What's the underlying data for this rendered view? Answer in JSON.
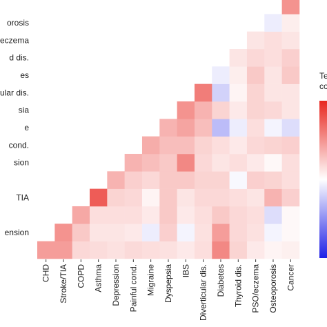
{
  "chart_data": {
    "type": "heatmap",
    "title": "",
    "xlabel": "",
    "ylabel": "",
    "x_categories": [
      "CHD",
      "Stroke/TIA",
      "COPD",
      "Asthma",
      "Depression",
      "Painful cond.",
      "Migraine",
      "Dyspepsia",
      "IBS",
      "Diverticular dis.",
      "Diabetes",
      "Thyroid dis.",
      "PSO/eczema",
      "Osteoporosis",
      "Cancer"
    ],
    "y_categories_visible": [
      "orosis",
      "eczema",
      "d dis.",
      "es",
      "ular dis.",
      "sia",
      "e",
      "cond.",
      "sion",
      "",
      "TIA",
      "",
      "ension"
    ],
    "legend": {
      "title_lines": [
        "Te",
        "co"
      ],
      "palette": {
        "low": "#1f1fe6",
        "mid": "#ffffff",
        "high": "#e8261f"
      },
      "range": [
        -1,
        1
      ],
      "position": "right"
    },
    "cells": [
      [
        0.45,
        0.45,
        0.18,
        0.16,
        0.14,
        0.17,
        0.15,
        0.14,
        0.1,
        0.15,
        0.55,
        0.2,
        0.1,
        0.05,
        0.07
      ],
      [
        null,
        0.5,
        0.25,
        0.12,
        0.12,
        0.1,
        -0.08,
        0.22,
        -0.05,
        0.14,
        0.45,
        0.18,
        0.14,
        -0.05,
        0.03
      ],
      [
        null,
        null,
        0.4,
        0.15,
        0.15,
        0.15,
        0.1,
        0.25,
        0.1,
        0.15,
        0.25,
        0.18,
        0.15,
        -0.15,
        0.03
      ],
      [
        null,
        null,
        null,
        0.75,
        0.2,
        0.18,
        0.05,
        0.25,
        0.12,
        0.18,
        0.18,
        0.15,
        0.12,
        0.35,
        0.22
      ],
      [
        null,
        null,
        null,
        null,
        0.35,
        0.22,
        0.18,
        0.25,
        0.25,
        0.2,
        0.2,
        -0.03,
        0.22,
        0.2,
        0.15
      ],
      [
        null,
        null,
        null,
        null,
        null,
        0.35,
        0.3,
        0.25,
        0.55,
        0.18,
        0.12,
        0.15,
        0.1,
        0.03,
        0.15
      ],
      [
        null,
        null,
        null,
        null,
        null,
        null,
        0.38,
        0.3,
        0.3,
        0.2,
        0.15,
        0.1,
        0.18,
        0.2,
        0.22
      ],
      [
        null,
        null,
        null,
        null,
        null,
        null,
        null,
        0.35,
        0.42,
        0.3,
        -0.3,
        -0.08,
        0.15,
        -0.05,
        -0.15
      ],
      [
        null,
        null,
        null,
        null,
        null,
        null,
        null,
        null,
        0.5,
        0.35,
        0.2,
        0.1,
        0.2,
        0.18,
        0.12
      ],
      [
        null,
        null,
        null,
        null,
        null,
        null,
        null,
        null,
        null,
        0.6,
        -0.2,
        0.05,
        0.2,
        0.12,
        0.12
      ],
      [
        null,
        null,
        null,
        null,
        null,
        null,
        null,
        null,
        null,
        null,
        -0.08,
        0.08,
        0.25,
        0.12,
        0.25
      ],
      [
        null,
        null,
        null,
        null,
        null,
        null,
        null,
        null,
        null,
        null,
        null,
        0.12,
        0.18,
        0.15,
        0.22
      ],
      [
        null,
        null,
        null,
        null,
        null,
        null,
        null,
        null,
        null,
        null,
        null,
        null,
        0.12,
        0.15,
        0.12
      ],
      [
        null,
        null,
        null,
        null,
        null,
        null,
        null,
        null,
        null,
        null,
        null,
        null,
        null,
        -0.08,
        0.08
      ],
      [
        null,
        null,
        null,
        null,
        null,
        null,
        null,
        null,
        null,
        null,
        null,
        null,
        null,
        null,
        0.5
      ]
    ]
  }
}
